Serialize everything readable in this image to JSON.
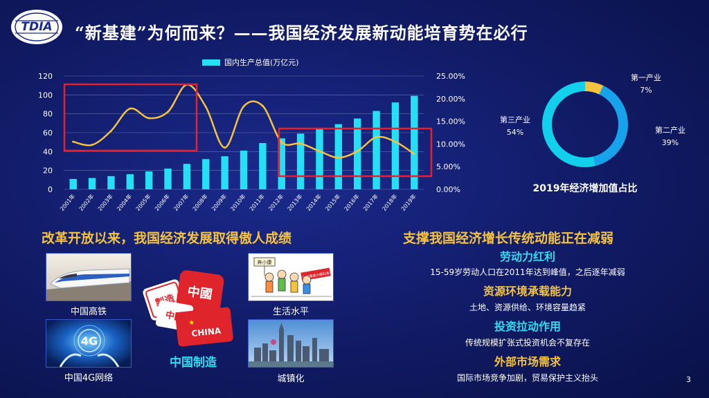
{
  "header": {
    "logo_text": "TDIA",
    "title": "“新基建”为何而来？——我国经济发展新动能培育势在必行"
  },
  "colors": {
    "bar": "#25e0f5",
    "line": "#f6c33e",
    "highlight_box": "#e8202a",
    "primary_sector": "#f6c33e",
    "secondary_sector": "#16a3ec",
    "tertiary_sector": "#12d0ec"
  },
  "chart_data": [
    {
      "type": "bar",
      "title": "",
      "categories": [
        "2001年",
        "2002年",
        "2003年",
        "2004年",
        "2005年",
        "2006年",
        "2007年",
        "2008年",
        "2009年",
        "2010年",
        "2011年",
        "2012年",
        "2013年",
        "2014年",
        "2015年",
        "2016年",
        "2017年",
        "2018年",
        "2019年"
      ],
      "series": [
        {
          "name": "国内生产总值(万亿元)",
          "type": "bar",
          "axis": "left",
          "values": [
            11,
            12,
            14,
            16,
            19,
            22,
            27,
            32,
            35,
            41,
            49,
            54,
            59,
            64,
            69,
            75,
            83,
            92,
            99
          ]
        },
        {
          "type": "line",
          "axis": "right",
          "values": [
            10.5,
            9.8,
            12.9,
            17.8,
            15.7,
            17.1,
            23.1,
            18.2,
            9.2,
            18.3,
            18.4,
            10.4,
            10.1,
            8.4,
            7.0,
            8.4,
            11.5,
            10.5,
            7.8
          ]
        }
      ],
      "ylim": [
        0,
        120
      ],
      "yticks": [
        "0",
        "20",
        "40",
        "60",
        "80",
        "100",
        "120"
      ],
      "y2lim": [
        0,
        25
      ],
      "y2ticks": [
        "0.00%",
        "5.00%",
        "10.00%",
        "15.00%",
        "20.00%",
        "25.00%"
      ],
      "legend_position": "top",
      "grid": true
    },
    {
      "type": "pie",
      "title": "2019年经济增加值占比",
      "slices": [
        {
          "name": "第一产业",
          "value": 7,
          "label": "7%"
        },
        {
          "name": "第二产业",
          "value": 39,
          "label": "39%"
        },
        {
          "name": "第三产业",
          "value": 54,
          "label": "54%"
        }
      ]
    }
  ],
  "left_section": {
    "heading": "改革开放以来，我国经济发展取得傲人成绩",
    "items": [
      "中国高铁",
      "中国4G网络",
      "生活水平",
      "城镇化",
      "中国制造"
    ],
    "stamp_texts": [
      "製造",
      "中國",
      "中國",
      "CHINA"
    ],
    "sign_text": "奔小康",
    "banner_text": "全面建成小康社会"
  },
  "right_section": {
    "heading": "支撑我国经济增长传统动能正在减弱",
    "points": [
      {
        "title": "劳动力红利",
        "text": "15-59岁劳动人口在2011年达到峰值，之后逐年减弱",
        "color": "cyan"
      },
      {
        "title": "资源环境承载能力",
        "text": "土地、资源供给、环境容量趋紧",
        "color": "orange"
      },
      {
        "title": "投资拉动作用",
        "text": "传统规模扩张式投资机会不复存在",
        "color": "cyan"
      },
      {
        "title": "外部市场需求",
        "text": "国际市场竞争加剧，贸易保护主义抬头",
        "color": "orange"
      }
    ]
  },
  "page_number": "3"
}
